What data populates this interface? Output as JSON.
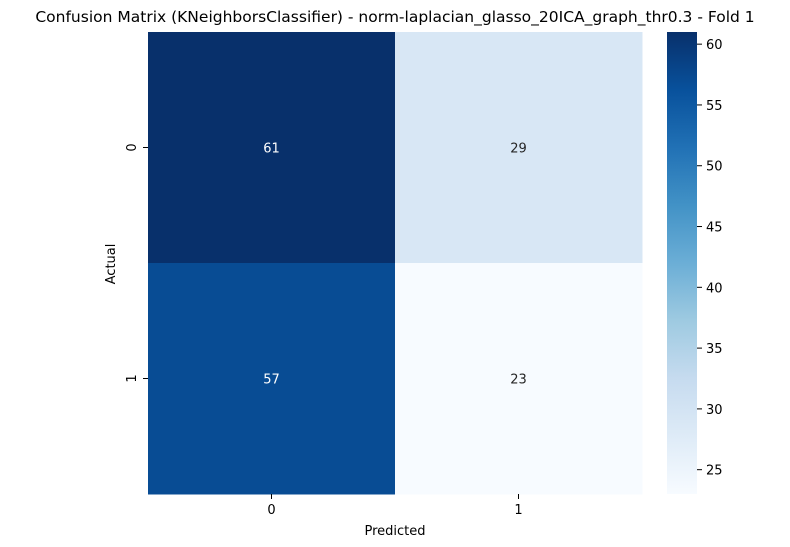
{
  "chart_data": {
    "type": "heatmap",
    "title": "Confusion Matrix (KNeighborsClassifier) - norm-laplacian_glasso_20ICA_graph_thr0.3 - Fold 1",
    "xlabel": "Predicted",
    "ylabel": "Actual",
    "x_categories": [
      "0",
      "1"
    ],
    "y_categories": [
      "0",
      "1"
    ],
    "values": [
      [
        61,
        29
      ],
      [
        57,
        23
      ]
    ],
    "colormap": "Blues",
    "colorbar": {
      "range": [
        23,
        61
      ],
      "ticks": [
        25,
        30,
        35,
        40,
        45,
        50,
        55,
        60
      ],
      "tick_labels": [
        "25",
        "30",
        "35",
        "40",
        "45",
        "50",
        "55",
        "60"
      ]
    }
  }
}
